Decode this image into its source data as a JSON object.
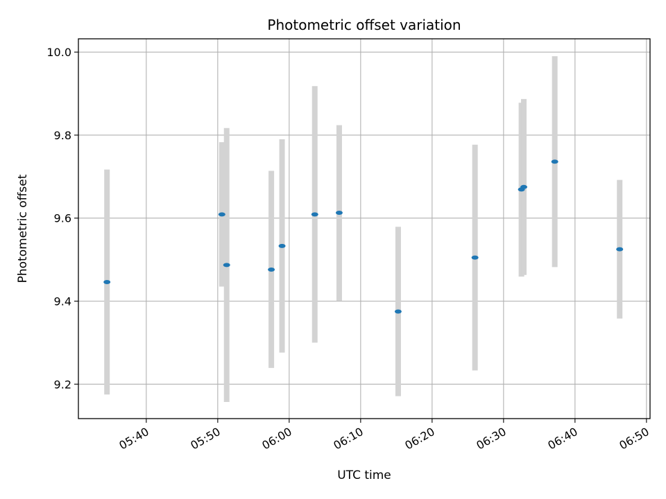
{
  "chart_data": {
    "type": "scatter",
    "title": "Photometric offset variation",
    "xlabel": "UTC time",
    "ylabel": "Photometric offset",
    "x_unit": "UTC time (HH:MM)",
    "xlim": [
      "05:30:30",
      "06:50:30"
    ],
    "ylim": [
      9.117,
      10.032
    ],
    "x_ticks": [
      "05:40",
      "05:50",
      "06:00",
      "06:10",
      "06:20",
      "06:30",
      "06:40",
      "06:50"
    ],
    "y_ticks": [
      9.2,
      9.4,
      9.6,
      9.8,
      10.0
    ],
    "y_tick_labels": [
      "9.2",
      "9.4",
      "9.6",
      "9.8",
      "10.0"
    ],
    "grid": true,
    "colors": {
      "point": "#1f77b4",
      "errorbar": "#d3d3d3",
      "grid": "#b0b0b0"
    },
    "points": [
      {
        "x": "05:34:30",
        "y": 9.446,
        "ylow": 9.175,
        "yhigh": 9.717
      },
      {
        "x": "05:50:35",
        "y": 9.609,
        "ylow": 9.435,
        "yhigh": 9.783
      },
      {
        "x": "05:51:15",
        "y": 9.487,
        "ylow": 9.157,
        "yhigh": 9.817
      },
      {
        "x": "05:57:30",
        "y": 9.476,
        "ylow": 9.239,
        "yhigh": 9.714
      },
      {
        "x": "05:59:00",
        "y": 9.533,
        "ylow": 9.276,
        "yhigh": 9.79
      },
      {
        "x": "06:03:35",
        "y": 9.609,
        "ylow": 9.3,
        "yhigh": 9.918
      },
      {
        "x": "06:07:00",
        "y": 9.613,
        "ylow": 9.401,
        "yhigh": 9.824
      },
      {
        "x": "06:15:15",
        "y": 9.375,
        "ylow": 9.171,
        "yhigh": 9.579
      },
      {
        "x": "06:26:00",
        "y": 9.505,
        "ylow": 9.233,
        "yhigh": 9.777
      },
      {
        "x": "06:32:30",
        "y": 9.669,
        "ylow": 9.459,
        "yhigh": 9.878
      },
      {
        "x": "06:32:50",
        "y": 9.675,
        "ylow": 9.463,
        "yhigh": 9.887
      },
      {
        "x": "06:37:10",
        "y": 9.736,
        "ylow": 9.482,
        "yhigh": 9.99
      },
      {
        "x": "06:46:15",
        "y": 9.525,
        "ylow": 9.358,
        "yhigh": 9.692
      }
    ]
  }
}
